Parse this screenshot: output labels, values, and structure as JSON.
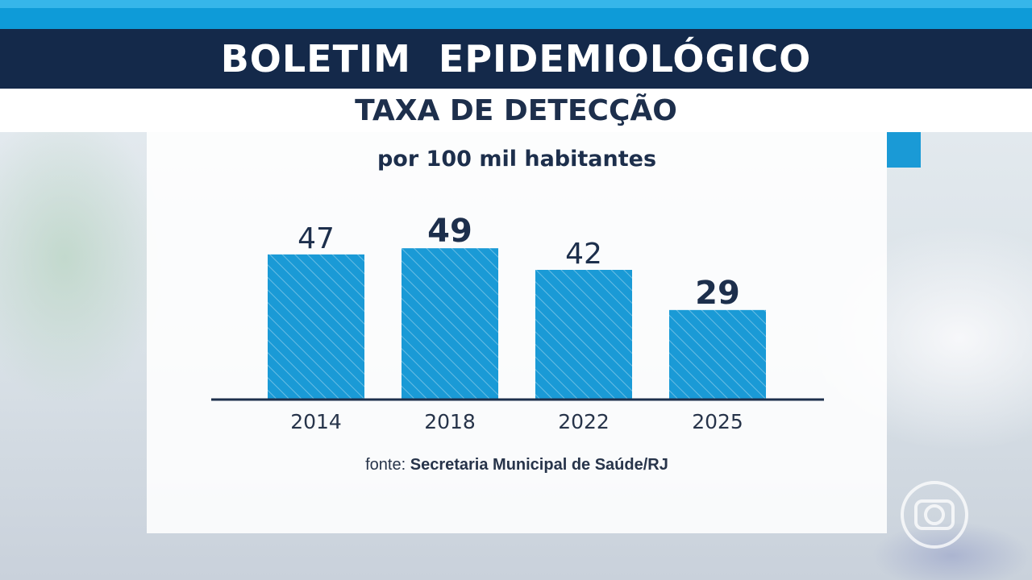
{
  "header": {
    "title": "BOLETIM  EPIDEMIOLÓGICO",
    "subtitle": "TAXA DE DETECÇÃO"
  },
  "colors": {
    "bar": "#1a9ad6",
    "title_bg": "#14294a",
    "text_dark": "#1d2f4c"
  },
  "logo_icon": "globo-logo-icon",
  "chart_data": {
    "type": "bar",
    "subtitle": "por 100 mil habitantes",
    "categories": [
      "2014",
      "2018",
      "2022",
      "2025"
    ],
    "values": [
      47,
      49,
      42,
      29
    ],
    "value_labels": [
      "47",
      "49",
      "42",
      "29"
    ],
    "emphasized": [
      false,
      true,
      false,
      true
    ],
    "ylim": [
      0,
      60
    ],
    "grid": false,
    "legend": "none",
    "source_label": "fonte:",
    "source": "Secretaria Municipal de Saúde/RJ"
  }
}
